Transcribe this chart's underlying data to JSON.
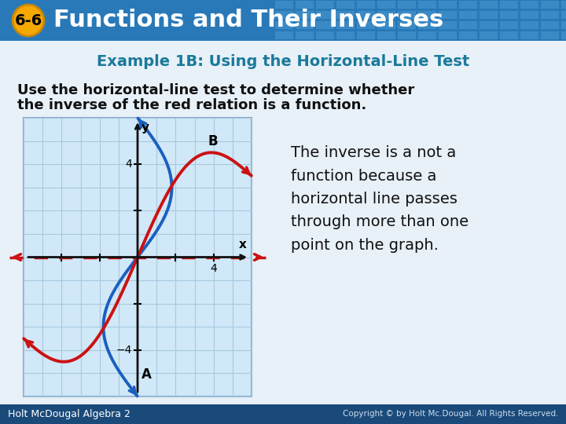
{
  "header_bg_left": "#2979b8",
  "header_bg_right": "#4a9fd4",
  "header_text": "Functions and Their Inverses",
  "badge_bg": "#f5a800",
  "badge_text": "6-6",
  "subtitle": "Example 1B: Using the Horizontal-Line Test",
  "subtitle_color": "#1a7a9a",
  "body_text_line1": "Use the horizontal-line test to determine whether",
  "body_text_line2": "the inverse of the red relation is a function.",
  "callout_text": "The inverse is a not a\nfunction because a\nhorizontal line passes\nthrough more than one\npoint on the graph.",
  "footer_left": "Holt McDougal Algebra 2",
  "footer_right": "Copyright © by Holt Mc.Dougal. All Rights Reserved.",
  "slide_bg": "#e8f0f8",
  "grid_bg": "#d0e8f8",
  "grid_line_color": "#a8c8e0",
  "blue_curve_color": "#1a5fbf",
  "red_curve_color": "#cc1111",
  "dashed_line_color": "#cc1111",
  "axis_color": "#111111",
  "footer_bg": "#1a4a7a",
  "header_tile_color": "#5aaae0"
}
